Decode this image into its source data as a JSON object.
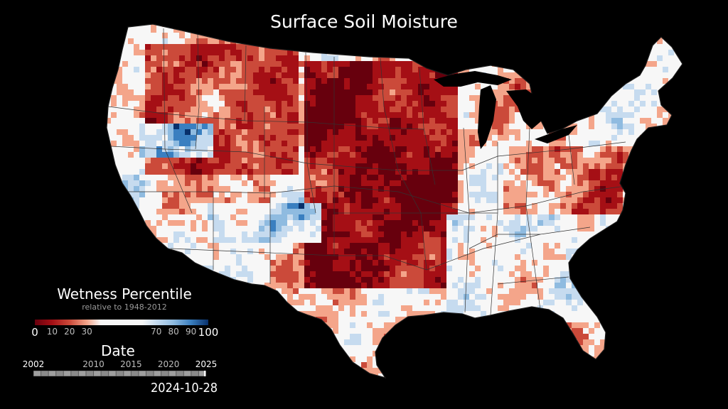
{
  "title": "Surface Soil Moisture",
  "legend": {
    "title": "Wetness Percentile",
    "subtitle": "relative to 1948-2012",
    "ticks": [
      "0",
      "10",
      "20",
      "30",
      "70",
      "80",
      "90",
      "100"
    ],
    "tick_values": [
      0,
      10,
      20,
      30,
      70,
      80,
      90,
      100
    ],
    "colors": {
      "p0": "#67000d",
      "p10": "#a50f15",
      "p20": "#cb4a3a",
      "p30": "#f4a58a",
      "p50": "#f7f7f7",
      "p70": "#c6dbef",
      "p80": "#8fbbe0",
      "p90": "#3a7fc0",
      "p100": "#08306b"
    }
  },
  "timeline": {
    "title": "Date",
    "years": [
      "2002",
      "2010",
      "2015",
      "2020",
      "2025"
    ],
    "year_values": [
      2002,
      2010,
      2015,
      2020,
      2025
    ],
    "current_date": "2024-10-28",
    "current_value": 2024.82
  },
  "map": {
    "region": "Contiguous United States",
    "shows": "state boundaries"
  }
}
